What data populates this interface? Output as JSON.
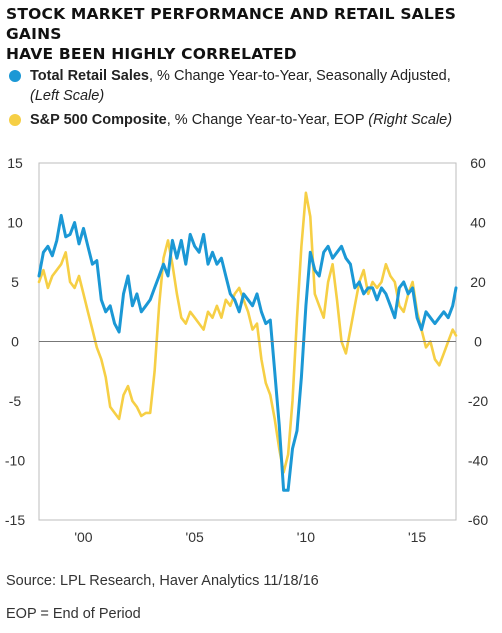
{
  "title_lines": [
    "STOCK MARKET PERFORMANCE AND RETAIL SALES GAINS",
    "HAVE BEEN HIGHLY CORRELATED"
  ],
  "legend": [
    {
      "name": "Total Retail Sales",
      "rest": ", % Change Year-to-Year, Seasonally Adjusted,",
      "scale_line": "(Left Scale)"
    },
    {
      "name": "S&P 500 Composite",
      "rest": ", % Change Year-to-Year, EOP ",
      "scale_inline": "(Right Scale)"
    }
  ],
  "colors": {
    "retail": "#1b98d5",
    "sp500": "#f6cf45",
    "zero_line": "#777777",
    "plot_bg": "#ffffff"
  },
  "source": "Source: LPL Research, Haver Analytics    11/18/16",
  "footnote": "EOP = End of Period",
  "chart_data": {
    "type": "line",
    "x_tick_labels": [
      "'00",
      "'05",
      "'10",
      "'15"
    ],
    "x_tick_years": [
      2000,
      2005,
      2010,
      2015
    ],
    "xlim": [
      1998.0,
      2016.75
    ],
    "left_axis": {
      "ticks": [
        15,
        10,
        5,
        0,
        -5,
        -10,
        -15
      ],
      "ylim": [
        -15,
        15
      ]
    },
    "right_axis": {
      "ticks": [
        60,
        40,
        20,
        0,
        -20,
        -40,
        -60
      ],
      "ylim": [
        -60,
        60
      ]
    },
    "series": [
      {
        "name": "Total Retail Sales",
        "axis": "left",
        "x": [
          1998.0,
          1998.2,
          1998.4,
          1998.6,
          1998.8,
          1999.0,
          1999.2,
          1999.4,
          1999.6,
          1999.8,
          2000.0,
          2000.2,
          2000.4,
          2000.6,
          2000.8,
          2001.0,
          2001.2,
          2001.4,
          2001.6,
          2001.8,
          2002.0,
          2002.2,
          2002.4,
          2002.6,
          2002.8,
          2003.0,
          2003.2,
          2003.4,
          2003.6,
          2003.8,
          2004.0,
          2004.2,
          2004.4,
          2004.6,
          2004.8,
          2005.0,
          2005.2,
          2005.4,
          2005.6,
          2005.8,
          2006.0,
          2006.2,
          2006.4,
          2006.6,
          2006.8,
          2007.0,
          2007.2,
          2007.4,
          2007.6,
          2007.8,
          2008.0,
          2008.2,
          2008.4,
          2008.6,
          2008.8,
          2009.0,
          2009.2,
          2009.4,
          2009.6,
          2009.8,
          2010.0,
          2010.2,
          2010.4,
          2010.6,
          2010.8,
          2011.0,
          2011.2,
          2011.4,
          2011.6,
          2011.8,
          2012.0,
          2012.2,
          2012.4,
          2012.6,
          2012.8,
          2013.0,
          2013.2,
          2013.4,
          2013.6,
          2013.8,
          2014.0,
          2014.2,
          2014.4,
          2014.6,
          2014.8,
          2015.0,
          2015.2,
          2015.4,
          2015.6,
          2015.8,
          2016.0,
          2016.2,
          2016.4,
          2016.6,
          2016.75
        ],
        "values": [
          5.5,
          7.5,
          8.0,
          7.2,
          8.5,
          10.6,
          8.8,
          9.0,
          10.0,
          8.2,
          9.5,
          8.0,
          6.5,
          6.8,
          3.5,
          2.5,
          3.0,
          1.5,
          0.8,
          4.0,
          5.5,
          3.0,
          4.0,
          2.5,
          3.0,
          3.5,
          4.5,
          5.5,
          6.5,
          5.5,
          8.5,
          7.0,
          8.5,
          6.5,
          9.0,
          8.0,
          7.5,
          9.0,
          6.5,
          7.5,
          6.5,
          7.0,
          5.5,
          4.0,
          3.5,
          2.5,
          4.0,
          3.5,
          3.0,
          4.0,
          2.5,
          1.5,
          1.8,
          -2.5,
          -7.0,
          -12.5,
          -12.5,
          -9.0,
          -7.5,
          -3.0,
          3.0,
          7.5,
          6.0,
          5.5,
          7.5,
          8.0,
          7.0,
          7.5,
          8.0,
          7.0,
          6.5,
          4.5,
          5.0,
          4.0,
          4.5,
          4.5,
          3.5,
          4.5,
          4.0,
          3.0,
          2.0,
          4.5,
          5.0,
          4.0,
          4.5,
          2.0,
          1.0,
          2.5,
          2.0,
          1.5,
          2.0,
          2.5,
          2.0,
          3.0,
          4.5
        ]
      },
      {
        "name": "S&P 500 Composite",
        "axis": "right",
        "x": [
          1998.0,
          1998.2,
          1998.4,
          1998.6,
          1998.8,
          1999.0,
          1999.2,
          1999.4,
          1999.6,
          1999.8,
          2000.0,
          2000.2,
          2000.4,
          2000.6,
          2000.8,
          2001.0,
          2001.2,
          2001.4,
          2001.6,
          2001.8,
          2002.0,
          2002.2,
          2002.4,
          2002.6,
          2002.8,
          2003.0,
          2003.2,
          2003.4,
          2003.6,
          2003.8,
          2004.0,
          2004.2,
          2004.4,
          2004.6,
          2004.8,
          2005.0,
          2005.2,
          2005.4,
          2005.6,
          2005.8,
          2006.0,
          2006.2,
          2006.4,
          2006.6,
          2006.8,
          2007.0,
          2007.2,
          2007.4,
          2007.6,
          2007.8,
          2008.0,
          2008.2,
          2008.4,
          2008.6,
          2008.8,
          2009.0,
          2009.2,
          2009.4,
          2009.6,
          2009.8,
          2010.0,
          2010.2,
          2010.4,
          2010.6,
          2010.8,
          2011.0,
          2011.2,
          2011.4,
          2011.6,
          2011.8,
          2012.0,
          2012.2,
          2012.4,
          2012.6,
          2012.8,
          2013.0,
          2013.2,
          2013.4,
          2013.6,
          2013.8,
          2014.0,
          2014.2,
          2014.4,
          2014.6,
          2014.8,
          2015.0,
          2015.2,
          2015.4,
          2015.6,
          2015.8,
          2016.0,
          2016.2,
          2016.4,
          2016.6,
          2016.75
        ],
        "values": [
          20,
          24,
          18,
          22,
          24,
          26,
          30,
          20,
          18,
          22,
          16,
          10,
          4,
          -2,
          -6,
          -12,
          -22,
          -24,
          -26,
          -18,
          -15,
          -20,
          -22,
          -25,
          -24,
          -24,
          -10,
          12,
          28,
          34,
          26,
          16,
          8,
          6,
          10,
          8,
          6,
          4,
          10,
          8,
          12,
          8,
          14,
          12,
          16,
          18,
          14,
          10,
          4,
          6,
          -6,
          -14,
          -18,
          -26,
          -36,
          -44,
          -38,
          -20,
          8,
          32,
          50,
          42,
          16,
          12,
          8,
          20,
          26,
          14,
          0,
          -4,
          4,
          12,
          20,
          24,
          16,
          20,
          18,
          20,
          26,
          22,
          20,
          12,
          10,
          16,
          20,
          10,
          4,
          -2,
          0,
          -6,
          -8,
          -4,
          0,
          4,
          2
        ]
      }
    ]
  }
}
